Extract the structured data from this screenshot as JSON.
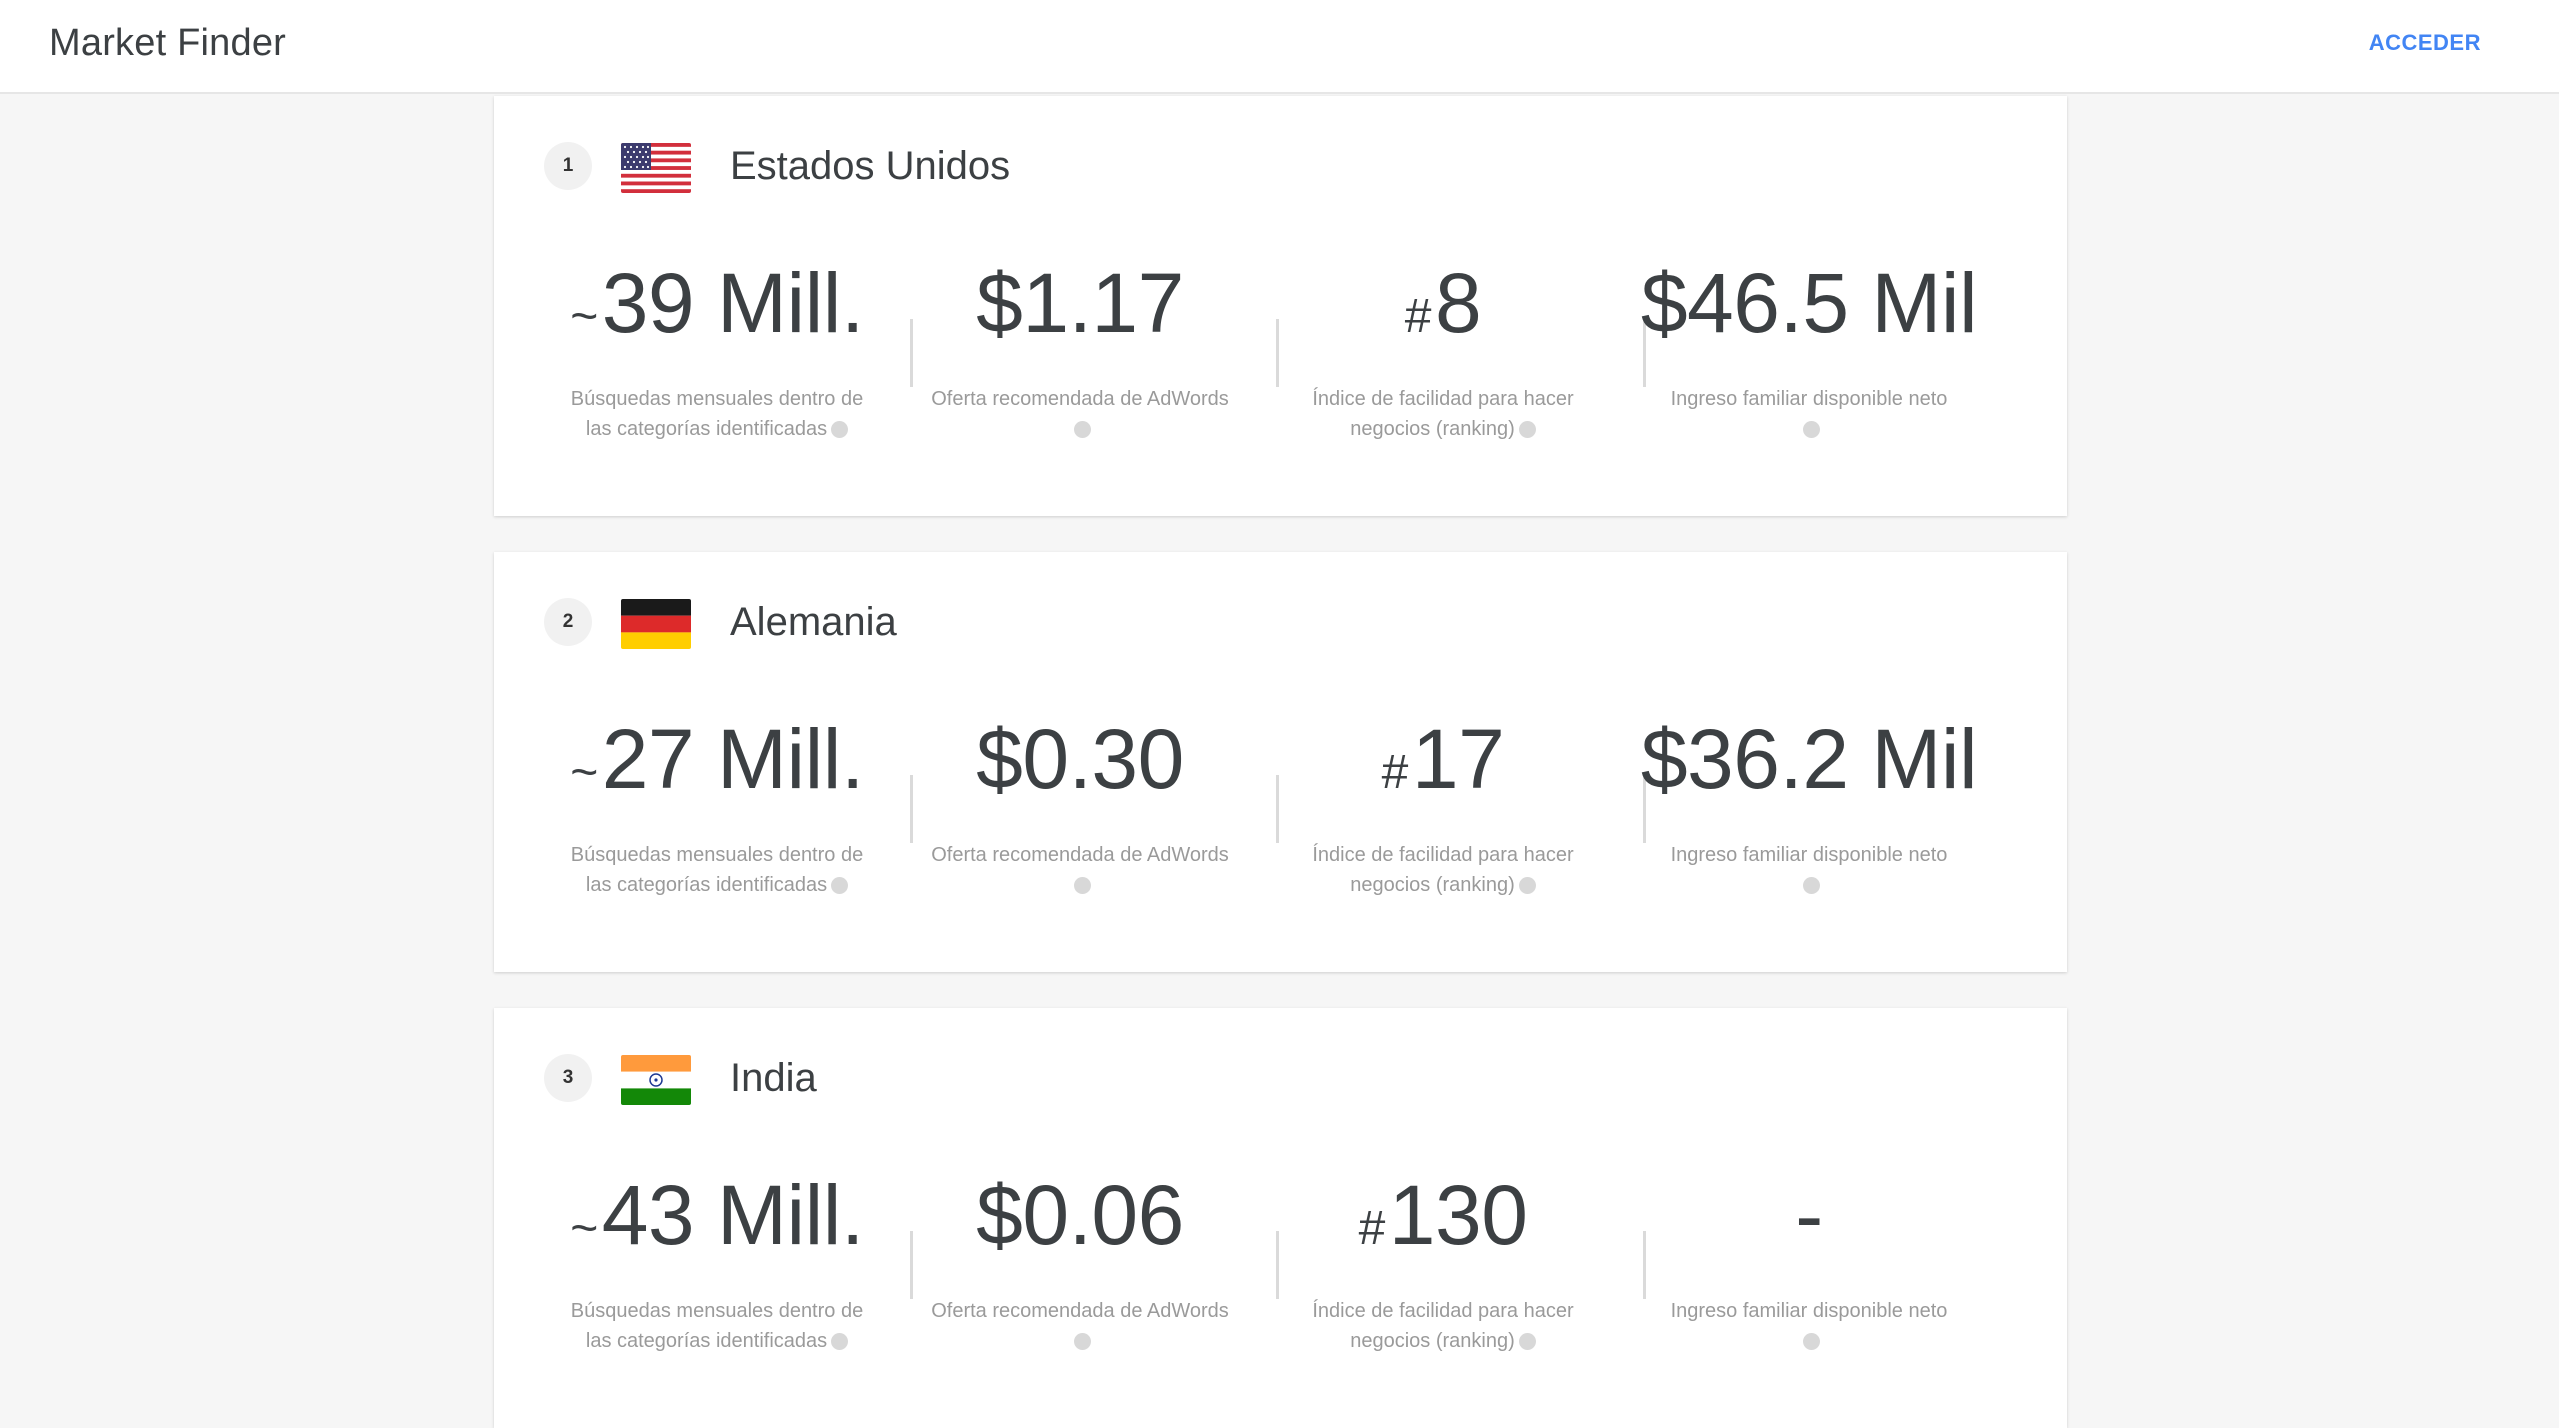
{
  "header": {
    "title": "Market Finder",
    "login_label": "ACCEDER"
  },
  "colors": {
    "accent": "#4285f4",
    "text": "#3c4043",
    "muted": "#9a9a9a",
    "background": "#f6f6f6"
  },
  "labels": {
    "searches_line1": "Búsquedas mensuales dentro de",
    "searches_line2": "las categorías identificadas",
    "bid": "Oferta recomendada de AdWords",
    "ease_line1": "Índice de facilidad para hacer",
    "ease_line2": "negocios (ranking)",
    "income": "Ingreso familiar disponible neto"
  },
  "countries": [
    {
      "rank": "1",
      "name": "Estados Unidos",
      "flag": "us-flag-icon",
      "searches_prefix": "~",
      "searches": "39 Mill.",
      "bid": "$1.17",
      "ease_prefix": "#",
      "ease": "8",
      "income": "$46.5 Mil"
    },
    {
      "rank": "2",
      "name": "Alemania",
      "flag": "germany-flag-icon",
      "searches_prefix": "~",
      "searches": "27 Mill.",
      "bid": "$0.30",
      "ease_prefix": "#",
      "ease": "17",
      "income": "$36.2 Mil"
    },
    {
      "rank": "3",
      "name": "India",
      "flag": "india-flag-icon",
      "searches_prefix": "~",
      "searches": "43 Mill.",
      "bid": "$0.06",
      "ease_prefix": "#",
      "ease": "130",
      "income": "-"
    }
  ]
}
